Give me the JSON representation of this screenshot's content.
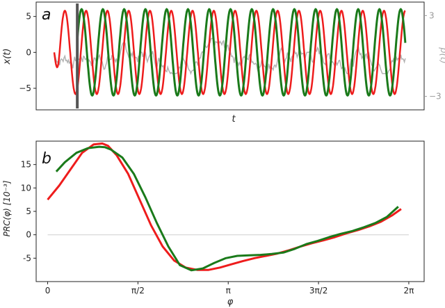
{
  "chart_data": [
    {
      "type": "line",
      "panel_label": "a",
      "xlabel": "t",
      "ylabel": "x(t)",
      "ylabel_right": "p(t)",
      "ylim": [
        -8,
        7
      ],
      "yticks": [
        "5",
        "0",
        "−5"
      ],
      "ytick_values": [
        5,
        0,
        -5
      ],
      "right_ylim": [
        -4,
        4
      ],
      "right_yticks": [
        "3",
        "−3"
      ],
      "right_ytick_values": [
        3,
        -3
      ],
      "xlim": [
        0,
        100
      ],
      "perturbation_t": 6.5,
      "colors": {
        "unperturbed": "#ee1c1c",
        "perturbed": "#1a7a1a",
        "noise": "#b3b3b3",
        "marker": "#555555"
      },
      "series": [
        {
          "t_start": 0,
          "t_end": 99,
          "period": 6.0,
          "amplitude": 5.8,
          "phase": -1.57
        },
        {
          "t_start": 6.5,
          "t_end": 99,
          "period": 6.0,
          "amplitude": 6.0,
          "phase": -1.75
        },
        {
          "t_start": 0,
          "t_end": 99,
          "noise_amplitude": 0.9
        }
      ]
    },
    {
      "type": "line",
      "panel_label": "b",
      "xlabel": "φ",
      "ylabel": "PRC(φ)   [10⁻³]",
      "xticks": [
        "0",
        "π/2",
        "π",
        "3π/2",
        "2π"
      ],
      "xtick_values": [
        0,
        1.5708,
        3.1416,
        4.7124,
        6.2832
      ],
      "xlim": [
        -0.2,
        6.55
      ],
      "ylim": [
        -10,
        20
      ],
      "yticks": [
        "15",
        "10",
        "5",
        "0",
        "-5"
      ],
      "ytick_values": [
        15,
        10,
        5,
        0,
        -5
      ],
      "zero_line": true,
      "colors": {
        "red": "#ee1c1c",
        "green": "#1a7a1a",
        "zero": "#dddddd"
      },
      "series": [
        {
          "color": "red",
          "x": [
            0,
            0.2,
            0.4,
            0.6,
            0.8,
            0.95,
            1.05,
            1.2,
            1.4,
            1.6,
            1.8,
            2.0,
            2.2,
            2.4,
            2.6,
            2.8,
            3.0,
            3.2,
            3.4,
            3.6,
            3.8,
            4.0,
            4.2,
            4.4,
            4.6,
            4.8,
            5.0,
            5.2,
            5.4,
            5.6,
            5.8,
            6.0,
            6.15
          ],
          "y": [
            7.5,
            10.5,
            14,
            17.5,
            19.3,
            19.5,
            19,
            17,
            13,
            7.5,
            2,
            -2.5,
            -5.5,
            -7,
            -7.5,
            -7.5,
            -7,
            -6.3,
            -5.6,
            -5,
            -4.5,
            -4,
            -3.3,
            -2.5,
            -1.8,
            -1.2,
            -0.5,
            0.3,
            1,
            1.8,
            2.8,
            4.2,
            5.5
          ]
        },
        {
          "color": "green",
          "x": [
            0.15,
            0.3,
            0.5,
            0.7,
            0.9,
            1.0,
            1.1,
            1.3,
            1.5,
            1.7,
            1.9,
            2.1,
            2.3,
            2.5,
            2.7,
            2.9,
            3.1,
            3.3,
            3.5,
            3.7,
            3.9,
            4.1,
            4.3,
            4.5,
            4.7,
            4.9,
            5.1,
            5.3,
            5.5,
            5.7,
            5.9,
            6.1
          ],
          "y": [
            13.5,
            15.5,
            17.5,
            18.5,
            18.8,
            18.7,
            18.2,
            16.5,
            13,
            8,
            2.5,
            -2.5,
            -6.5,
            -7.6,
            -7.2,
            -6,
            -5,
            -4.5,
            -4.4,
            -4.3,
            -4.1,
            -3.8,
            -3,
            -2,
            -1.3,
            -0.5,
            0.2,
            0.8,
            1.6,
            2.5,
            3.8,
            6
          ]
        }
      ]
    }
  ]
}
